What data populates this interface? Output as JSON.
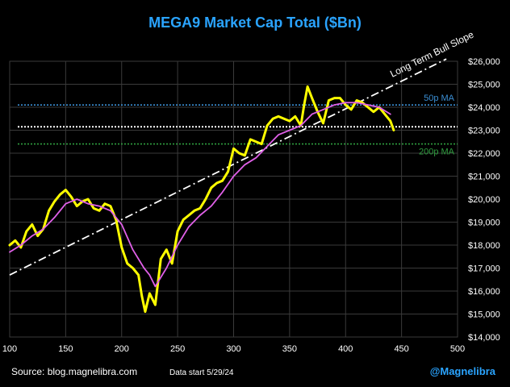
{
  "chart_data": {
    "type": "line",
    "title": "MEGA9 Market Cap Total ($Bn)",
    "xlim": [
      100,
      500
    ],
    "ylim": [
      14000,
      26000
    ],
    "x_ticks": [
      100,
      150,
      200,
      250,
      300,
      350,
      400,
      450,
      500
    ],
    "y_ticks": [
      14000,
      15000,
      16000,
      17000,
      18000,
      19000,
      20000,
      21000,
      22000,
      23000,
      24000,
      25000,
      26000
    ],
    "y_tick_prefix": "$",
    "grid": true,
    "series": [
      {
        "name": "",
        "color": "#ffff00",
        "x": [
          100,
          105,
          110,
          115,
          120,
          125,
          130,
          135,
          140,
          145,
          150,
          155,
          160,
          165,
          170,
          175,
          180,
          185,
          190,
          195,
          200,
          205,
          210,
          215,
          218,
          221,
          225,
          230,
          235,
          240,
          245,
          250,
          255,
          260,
          265,
          270,
          275,
          280,
          285,
          290,
          295,
          300,
          305,
          310,
          315,
          320,
          325,
          330,
          335,
          340,
          345,
          350,
          355,
          360,
          363,
          366,
          370,
          375,
          380,
          385,
          390,
          395,
          400,
          405,
          410,
          415,
          420,
          425,
          430,
          435,
          440,
          443
        ],
        "y": [
          18000,
          18200,
          17900,
          18600,
          18900,
          18400,
          18700,
          19500,
          19900,
          20200,
          20400,
          20100,
          19700,
          19900,
          20000,
          19600,
          19500,
          19800,
          19700,
          19100,
          17900,
          17200,
          17000,
          16700,
          15800,
          15100,
          15900,
          15400,
          17400,
          17800,
          17200,
          18600,
          19100,
          19300,
          19500,
          19600,
          20000,
          20500,
          20700,
          20800,
          21200,
          22200,
          22000,
          21900,
          22600,
          22500,
          22400,
          23200,
          23500,
          23600,
          23500,
          23400,
          23600,
          23200,
          24100,
          24900,
          24400,
          23800,
          23300,
          24300,
          24400,
          24400,
          24100,
          23900,
          24300,
          24200,
          24000,
          23800,
          24000,
          23700,
          23400,
          23000
        ]
      },
      {
        "name": "",
        "color": "#e060e8",
        "x": [
          100,
          110,
          120,
          130,
          140,
          150,
          160,
          170,
          180,
          190,
          200,
          210,
          220,
          225,
          230,
          240,
          250,
          260,
          270,
          280,
          290,
          300,
          310,
          320,
          330,
          340,
          350,
          360,
          370,
          380,
          390,
          400,
          410,
          420,
          430,
          440
        ],
        "y": [
          17700,
          18000,
          18400,
          18700,
          19200,
          19800,
          20000,
          19800,
          19700,
          19500,
          18900,
          17800,
          17000,
          16700,
          16200,
          17000,
          18000,
          18800,
          19300,
          19700,
          20300,
          21000,
          21500,
          21800,
          22300,
          22800,
          23000,
          23200,
          23700,
          23900,
          24100,
          24200,
          24200,
          24100,
          24000,
          23700
        ]
      }
    ],
    "reference_lines": [
      {
        "label": "50p MA",
        "y": 24100,
        "color": "#3b8fd4"
      },
      {
        "label": "",
        "y": 23150,
        "color": "#ffffff"
      },
      {
        "label": "200p MA",
        "y": 22400,
        "color": "#2f9e3f"
      }
    ],
    "trend_line": {
      "label": "Long Term Bull Slope",
      "x": [
        100,
        490
      ],
      "y": [
        16700,
        26100
      ],
      "color": "#ffffff"
    }
  },
  "footer": {
    "source": "Source: blog.magnelibra.com",
    "data_start": "Data start 5/29/24",
    "handle": "@Magnelibra"
  }
}
